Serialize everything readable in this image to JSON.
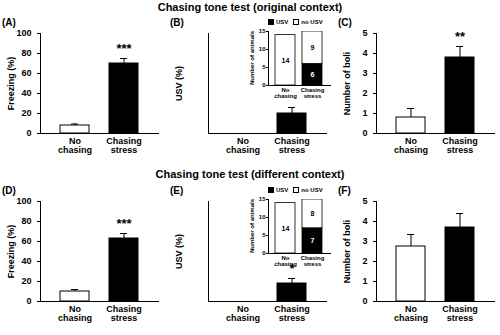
{
  "headings": [
    "Chasing tone test (original context)",
    "Chasing tone test (different context)"
  ],
  "chart_data": [
    {
      "type": "bar",
      "title": "(A)",
      "categories": [
        "No\nchasing",
        "Chasing\nstress"
      ],
      "values": [
        8,
        70
      ],
      "errors": [
        1.5,
        5
      ],
      "colors": [
        "#ffffff",
        "#000000"
      ],
      "y_label": "Freezing (%)",
      "ylim": [
        0,
        100
      ],
      "yticks": [
        0,
        20,
        40,
        60,
        80,
        100
      ],
      "annotations": [
        {
          "category": "Chasing\nstress",
          "text": "***"
        }
      ]
    },
    {
      "type": "bar",
      "title": "(B)",
      "categories": [
        "No\nchasing",
        "Chasing\nstress"
      ],
      "values": [
        0,
        20
      ],
      "errors": [
        0,
        6
      ],
      "colors": [
        "#ffffff",
        "#000000"
      ],
      "y_label": "USV (%)",
      "ylim": [
        0,
        100
      ],
      "tick_labels": "x",
      "inset": {
        "type": "bar",
        "stacked": true,
        "categories": [
          "No\nchasing",
          "Chasing\nstress"
        ],
        "series": [
          {
            "name": "USV",
            "color": "#000000",
            "values": [
              0,
              6
            ]
          },
          {
            "name": "no USV",
            "color": "#ffffff",
            "values": [
              14,
              9
            ]
          }
        ],
        "y_label": "Number of animals",
        "ylim": [
          0,
          15
        ],
        "yticks": [
          0,
          5,
          10,
          15
        ],
        "data_labels": true,
        "legend": "top"
      }
    },
    {
      "type": "bar",
      "title": "(C)",
      "categories": [
        "No\nchasing",
        "Chasing\nstress"
      ],
      "values": [
        0.8,
        3.8
      ],
      "errors": [
        0.45,
        0.55
      ],
      "colors": [
        "#ffffff",
        "#000000"
      ],
      "y_label": "Number of boli",
      "ylim": [
        0,
        5
      ],
      "yticks": [
        0,
        1,
        2,
        3,
        4,
        5
      ],
      "annotations": [
        {
          "category": "Chasing\nstress",
          "text": "**"
        }
      ]
    },
    {
      "type": "bar",
      "title": "(D)",
      "categories": [
        "No\nchasing",
        "Chasing\nstress"
      ],
      "values": [
        10,
        63
      ],
      "errors": [
        2,
        5
      ],
      "colors": [
        "#ffffff",
        "#000000"
      ],
      "y_label": "Freezing (%)",
      "ylim": [
        0,
        100
      ],
      "yticks": [
        0,
        20,
        40,
        60,
        80,
        100
      ],
      "annotations": [
        {
          "category": "Chasing\nstress",
          "text": "***"
        }
      ]
    },
    {
      "type": "bar",
      "title": "(E)",
      "categories": [
        "No\nchasing",
        "Chasing\nstress"
      ],
      "values": [
        0,
        18
      ],
      "errors": [
        0,
        5
      ],
      "colors": [
        "#ffffff",
        "#000000"
      ],
      "y_label": "USV (%)",
      "ylim": [
        0,
        100
      ],
      "tick_labels": "x",
      "annotations": [
        {
          "category": "Chasing\nstress",
          "text": "*"
        }
      ],
      "inset": {
        "type": "bar",
        "stacked": true,
        "categories": [
          "No\nchasing",
          "Chasing\nstress"
        ],
        "series": [
          {
            "name": "USV",
            "color": "#000000",
            "values": [
              0,
              7
            ]
          },
          {
            "name": "no USV",
            "color": "#ffffff",
            "values": [
              14,
              8
            ]
          }
        ],
        "y_label": "Number of animals",
        "ylim": [
          0,
          15
        ],
        "yticks": [
          0,
          5,
          10,
          15
        ],
        "data_labels": true,
        "legend": "top"
      }
    },
    {
      "type": "bar",
      "title": "(F)",
      "categories": [
        "No\nchasing",
        "Chasing\nstress"
      ],
      "values": [
        2.75,
        3.7
      ],
      "errors": [
        0.6,
        0.7
      ],
      "colors": [
        "#ffffff",
        "#000000"
      ],
      "y_label": "Number of boli",
      "ylim": [
        0,
        5
      ],
      "yticks": [
        0,
        1,
        2,
        3,
        4,
        5
      ]
    }
  ]
}
